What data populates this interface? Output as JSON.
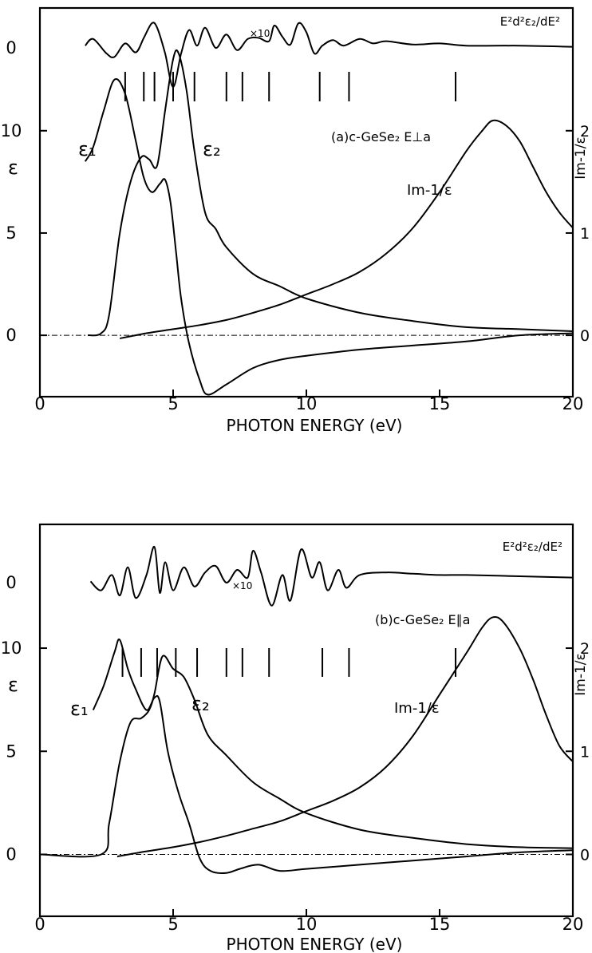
{
  "chart_data": [
    {
      "type": "line",
      "panel_label": "(a)c-GeSe₂  E⊥a",
      "xlabel": "PHOTON  ENERGY (eV)",
      "ylabel_left": "ε",
      "ylabel_right": "Im-1/ε",
      "xlim": [
        0,
        20
      ],
      "ylim_left": [
        -3,
        16
      ],
      "ylim_right": [
        -0.6,
        3.2
      ],
      "x_ticks": [
        "0",
        "5",
        "10",
        "15",
        "20"
      ],
      "y_ticks_left": [
        "0",
        "5",
        "10"
      ],
      "y_ticks_right": [
        "0",
        "1",
        "2"
      ],
      "deriv_zero_label": "0",
      "deriv_label": "E²d²ε₂/dE²",
      "scale_note": "×10",
      "transition_marks_eV": [
        3.2,
        3.9,
        4.3,
        5.0,
        5.8,
        7.0,
        7.6,
        8.6,
        10.5,
        11.6,
        15.6
      ],
      "series": [
        {
          "name": "ε₁",
          "axis": "left",
          "points": [
            [
              1.7,
              8.5
            ],
            [
              2.0,
              9.2
            ],
            [
              2.4,
              11.0
            ],
            [
              2.8,
              12.5
            ],
            [
              3.2,
              11.8
            ],
            [
              3.6,
              9.5
            ],
            [
              3.9,
              7.7
            ],
            [
              4.2,
              7.0
            ],
            [
              4.5,
              7.4
            ],
            [
              4.7,
              7.6
            ],
            [
              4.9,
              6.5
            ],
            [
              5.1,
              4.2
            ],
            [
              5.3,
              1.8
            ],
            [
              5.6,
              -0.4
            ],
            [
              6.0,
              -2.2
            ],
            [
              6.3,
              -2.9
            ],
            [
              7.0,
              -2.4
            ],
            [
              8.0,
              -1.6
            ],
            [
              9.0,
              -1.2
            ],
            [
              10.0,
              -1.0
            ],
            [
              12.0,
              -0.7
            ],
            [
              14.0,
              -0.5
            ],
            [
              16.0,
              -0.3
            ],
            [
              18.0,
              0.0
            ],
            [
              20.0,
              0.1
            ]
          ]
        },
        {
          "name": "ε₂",
          "axis": "left",
          "points": [
            [
              1.8,
              0.0
            ],
            [
              2.3,
              0.1
            ],
            [
              2.6,
              1.0
            ],
            [
              3.0,
              5.0
            ],
            [
              3.4,
              7.5
            ],
            [
              3.8,
              8.7
            ],
            [
              4.1,
              8.6
            ],
            [
              4.4,
              8.3
            ],
            [
              4.7,
              11.0
            ],
            [
              5.0,
              13.5
            ],
            [
              5.2,
              13.8
            ],
            [
              5.5,
              12.0
            ],
            [
              5.8,
              9.0
            ],
            [
              6.2,
              6.0
            ],
            [
              6.6,
              5.2
            ],
            [
              7.0,
              4.3
            ],
            [
              8.0,
              3.0
            ],
            [
              9.0,
              2.4
            ],
            [
              10.0,
              1.8
            ],
            [
              12.0,
              1.1
            ],
            [
              14.0,
              0.7
            ],
            [
              16.0,
              0.4
            ],
            [
              18.0,
              0.3
            ],
            [
              20.0,
              0.2
            ]
          ]
        },
        {
          "name": "Im-1/ε",
          "axis": "right",
          "points": [
            [
              3.0,
              -0.03
            ],
            [
              4.0,
              0.02
            ],
            [
              5.0,
              0.06
            ],
            [
              6.0,
              0.1
            ],
            [
              7.0,
              0.15
            ],
            [
              8.0,
              0.22
            ],
            [
              9.0,
              0.3
            ],
            [
              10.0,
              0.4
            ],
            [
              11.0,
              0.5
            ],
            [
              12.0,
              0.62
            ],
            [
              13.0,
              0.8
            ],
            [
              14.0,
              1.05
            ],
            [
              15.0,
              1.4
            ],
            [
              16.0,
              1.8
            ],
            [
              16.6,
              2.0
            ],
            [
              17.0,
              2.1
            ],
            [
              17.5,
              2.05
            ],
            [
              18.0,
              1.9
            ],
            [
              18.5,
              1.65
            ],
            [
              19.0,
              1.4
            ],
            [
              19.5,
              1.2
            ],
            [
              20.0,
              1.05
            ]
          ]
        }
      ],
      "derivative_spectrum": [
        [
          1.7,
          0.2
        ],
        [
          2.0,
          0.8
        ],
        [
          2.5,
          -0.5
        ],
        [
          2.8,
          -0.8
        ],
        [
          3.2,
          0.4
        ],
        [
          3.6,
          -0.4
        ],
        [
          3.9,
          0.9
        ],
        [
          4.2,
          2.2
        ],
        [
          4.4,
          1.8
        ],
        [
          4.7,
          -0.5
        ],
        [
          5.0,
          -3.5
        ],
        [
          5.3,
          -0.5
        ],
        [
          5.6,
          1.6
        ],
        [
          5.9,
          0.2
        ],
        [
          6.2,
          1.8
        ],
        [
          6.6,
          0.0
        ],
        [
          7.0,
          1.2
        ],
        [
          7.4,
          -0.2
        ],
        [
          7.8,
          0.8
        ],
        [
          8.2,
          0.9
        ],
        [
          8.6,
          0.6
        ],
        [
          8.8,
          2.0
        ],
        [
          9.1,
          1.0
        ],
        [
          9.4,
          0.3
        ],
        [
          9.7,
          2.2
        ],
        [
          10.0,
          1.4
        ],
        [
          10.3,
          -0.5
        ],
        [
          10.6,
          0.2
        ],
        [
          11.0,
          0.7
        ],
        [
          11.4,
          0.2
        ],
        [
          12.0,
          0.8
        ],
        [
          12.5,
          0.4
        ],
        [
          13.0,
          0.6
        ],
        [
          14.0,
          0.3
        ],
        [
          15.0,
          0.4
        ],
        [
          16.0,
          0.2
        ],
        [
          18.0,
          0.2
        ],
        [
          20.0,
          0.1
        ]
      ]
    },
    {
      "type": "line",
      "panel_label": "(b)c-GeSe₂  E∥a",
      "xlabel": "PHOTON  ENERGY (eV)",
      "ylabel_left": "ε",
      "ylabel_right": "Im-1/ε",
      "xlim": [
        0,
        20
      ],
      "ylim_left": [
        -3,
        16
      ],
      "ylim_right": [
        -0.6,
        3.2
      ],
      "x_ticks": [
        "0",
        "5",
        "10",
        "15",
        "20"
      ],
      "y_ticks_left": [
        "0",
        "5",
        "10"
      ],
      "y_ticks_right": [
        "0",
        "1",
        "2"
      ],
      "deriv_zero_label": "0",
      "deriv_label": "E²d²ε₂/dE²",
      "scale_note": "×10",
      "transition_marks_eV": [
        3.1,
        3.8,
        4.4,
        5.1,
        5.9,
        7.0,
        7.6,
        8.6,
        10.6,
        11.6,
        15.6
      ],
      "series": [
        {
          "name": "ε₁",
          "axis": "left",
          "points": [
            [
              2.0,
              7.0
            ],
            [
              2.4,
              8.2
            ],
            [
              2.8,
              9.8
            ],
            [
              3.0,
              10.4
            ],
            [
              3.3,
              9.0
            ],
            [
              3.6,
              8.0
            ],
            [
              4.0,
              7.0
            ],
            [
              4.3,
              7.6
            ],
            [
              4.5,
              7.4
            ],
            [
              4.8,
              5.0
            ],
            [
              5.2,
              3.0
            ],
            [
              5.6,
              1.5
            ],
            [
              6.0,
              -0.2
            ],
            [
              6.4,
              -0.8
            ],
            [
              7.0,
              -0.9
            ],
            [
              7.5,
              -0.7
            ],
            [
              8.2,
              -0.5
            ],
            [
              9.0,
              -0.8
            ],
            [
              10.0,
              -0.7
            ],
            [
              12.0,
              -0.5
            ],
            [
              14.0,
              -0.3
            ],
            [
              16.0,
              -0.1
            ],
            [
              18.0,
              0.1
            ],
            [
              20.0,
              0.2
            ]
          ]
        },
        {
          "name": "ε₂",
          "axis": "left",
          "points": [
            [
              0.0,
              0.0
            ],
            [
              2.3,
              0.0
            ],
            [
              2.6,
              1.5
            ],
            [
              3.0,
              4.5
            ],
            [
              3.4,
              6.4
            ],
            [
              3.8,
              6.6
            ],
            [
              4.1,
              7.0
            ],
            [
              4.3,
              7.8
            ],
            [
              4.6,
              9.6
            ],
            [
              5.0,
              9.0
            ],
            [
              5.4,
              8.6
            ],
            [
              5.8,
              7.5
            ],
            [
              6.3,
              5.8
            ],
            [
              7.0,
              4.8
            ],
            [
              8.0,
              3.5
            ],
            [
              9.0,
              2.7
            ],
            [
              10.0,
              2.0
            ],
            [
              12.0,
              1.2
            ],
            [
              14.0,
              0.8
            ],
            [
              16.0,
              0.5
            ],
            [
              18.0,
              0.35
            ],
            [
              20.0,
              0.3
            ]
          ]
        },
        {
          "name": "Im-1/ε",
          "axis": "right",
          "points": [
            [
              2.9,
              -0.02
            ],
            [
              4.0,
              0.03
            ],
            [
              5.0,
              0.07
            ],
            [
              6.0,
              0.12
            ],
            [
              7.0,
              0.18
            ],
            [
              8.0,
              0.25
            ],
            [
              9.0,
              0.32
            ],
            [
              10.0,
              0.42
            ],
            [
              11.0,
              0.52
            ],
            [
              12.0,
              0.65
            ],
            [
              13.0,
              0.85
            ],
            [
              14.0,
              1.15
            ],
            [
              15.0,
              1.55
            ],
            [
              16.0,
              1.95
            ],
            [
              16.6,
              2.2
            ],
            [
              17.0,
              2.3
            ],
            [
              17.4,
              2.25
            ],
            [
              18.0,
              2.0
            ],
            [
              18.5,
              1.7
            ],
            [
              19.0,
              1.35
            ],
            [
              19.5,
              1.05
            ],
            [
              20.0,
              0.9
            ]
          ]
        }
      ],
      "derivative_spectrum": [
        [
          1.9,
          0.1
        ],
        [
          2.3,
          -0.6
        ],
        [
          2.7,
          0.6
        ],
        [
          3.0,
          -1.0
        ],
        [
          3.3,
          1.2
        ],
        [
          3.6,
          -1.2
        ],
        [
          4.0,
          0.6
        ],
        [
          4.3,
          2.8
        ],
        [
          4.5,
          -0.8
        ],
        [
          4.7,
          1.6
        ],
        [
          5.0,
          -0.6
        ],
        [
          5.4,
          1.2
        ],
        [
          5.8,
          -0.3
        ],
        [
          6.2,
          0.8
        ],
        [
          6.6,
          1.3
        ],
        [
          7.0,
          0.0
        ],
        [
          7.4,
          1.0
        ],
        [
          7.8,
          0.4
        ],
        [
          8.0,
          2.5
        ],
        [
          8.3,
          0.8
        ],
        [
          8.7,
          -1.8
        ],
        [
          9.1,
          0.6
        ],
        [
          9.4,
          -1.4
        ],
        [
          9.8,
          2.6
        ],
        [
          10.2,
          0.4
        ],
        [
          10.5,
          1.6
        ],
        [
          10.8,
          -0.6
        ],
        [
          11.2,
          1.0
        ],
        [
          11.5,
          -0.4
        ],
        [
          12.0,
          0.6
        ],
        [
          13.0,
          0.8
        ],
        [
          14.0,
          0.7
        ],
        [
          15.0,
          0.6
        ],
        [
          16.0,
          0.6
        ],
        [
          18.0,
          0.5
        ],
        [
          20.0,
          0.4
        ]
      ]
    }
  ]
}
